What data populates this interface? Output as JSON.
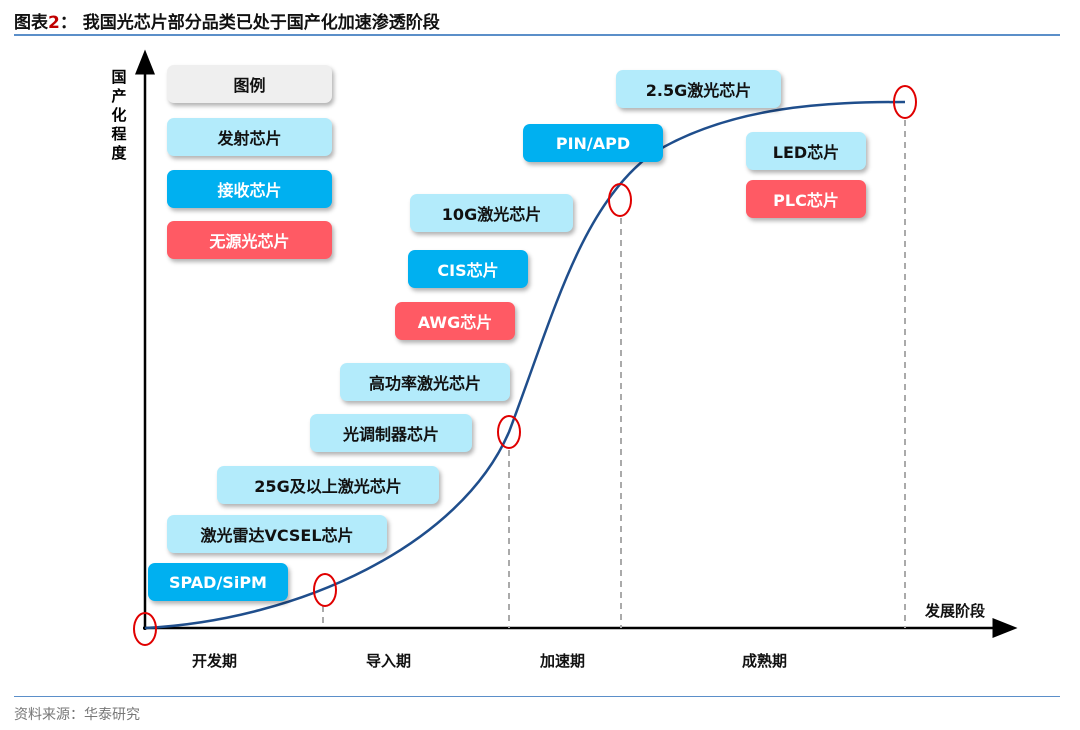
{
  "title": {
    "prefix": "图表",
    "num": "2",
    "suffix": "：  我国光芯片部分品类已处于国产化加速渗透阶段"
  },
  "axes": {
    "y_label": "国产化程度",
    "x_label": "发展阶段"
  },
  "stages": [
    "开发期",
    "导入期",
    "加速期",
    "成熟期"
  ],
  "legend": {
    "title": "图例",
    "emit": "发射芯片",
    "receive": "接收芯片",
    "passive": "无源光芯片"
  },
  "colors": {
    "emit": "#b3ebfb",
    "receive": "#00b0f0",
    "passive": "#ff5a64",
    "curve": "#1f4e8c",
    "marker": "#e00000"
  },
  "chips": [
    {
      "label": "SPAD/SiPM",
      "type": "receive"
    },
    {
      "label": "激光雷达VCSEL芯片",
      "type": "emit"
    },
    {
      "label": "25G及以上激光芯片",
      "type": "emit"
    },
    {
      "label": "光调制器芯片",
      "type": "emit"
    },
    {
      "label": "高功率激光芯片",
      "type": "emit"
    },
    {
      "label": "AWG芯片",
      "type": "passive"
    },
    {
      "label": "CIS芯片",
      "type": "receive"
    },
    {
      "label": "10G激光芯片",
      "type": "emit"
    },
    {
      "label": "PIN/APD",
      "type": "receive"
    },
    {
      "label": "2.5G激光芯片",
      "type": "emit"
    },
    {
      "label": "LED芯片",
      "type": "emit"
    },
    {
      "label": "PLC芯片",
      "type": "passive"
    }
  ],
  "source": "资料来源：华泰研究"
}
